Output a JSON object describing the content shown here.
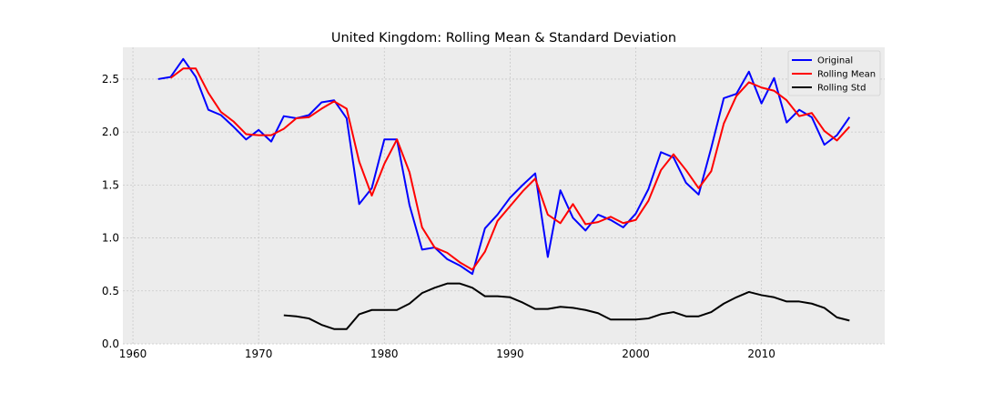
{
  "chart_data": {
    "type": "line",
    "title": "United Kingdom: Rolling Mean & Standard Deviation",
    "xlabel": "",
    "ylabel": "",
    "xlim": [
      1959.2,
      2019.8
    ],
    "ylim": [
      0.0,
      2.8
    ],
    "xticks": [
      1960,
      1970,
      1980,
      1990,
      2000,
      2010
    ],
    "yticks": [
      0.0,
      0.5,
      1.0,
      1.5,
      2.0,
      2.5
    ],
    "grid": true,
    "legend_position": "top-right",
    "colors": {
      "plot_background": "#ececec",
      "grid": "#c8c8c8"
    },
    "series": [
      {
        "name": "Original",
        "color": "#0000ff",
        "x": [
          1962,
          1963,
          1964,
          1965,
          1966,
          1967,
          1968,
          1969,
          1970,
          1971,
          1972,
          1973,
          1974,
          1975,
          1976,
          1977,
          1978,
          1979,
          1980,
          1981,
          1982,
          1983,
          1984,
          1985,
          1986,
          1987,
          1988,
          1989,
          1990,
          1991,
          1992,
          1993,
          1994,
          1995,
          1996,
          1997,
          1998,
          1999,
          2000,
          2001,
          2002,
          2003,
          2004,
          2005,
          2006,
          2007,
          2008,
          2009,
          2010,
          2011,
          2012,
          2013,
          2014,
          2015,
          2016,
          2017
        ],
        "values": [
          2.5,
          2.52,
          2.69,
          2.52,
          2.21,
          2.16,
          2.05,
          1.93,
          2.02,
          1.91,
          2.15,
          2.13,
          2.16,
          2.28,
          2.3,
          2.13,
          1.32,
          1.47,
          1.93,
          1.93,
          1.31,
          0.89,
          0.91,
          0.8,
          0.74,
          0.66,
          1.09,
          1.22,
          1.38,
          1.5,
          1.61,
          0.82,
          1.45,
          1.19,
          1.07,
          1.22,
          1.17,
          1.1,
          1.23,
          1.46,
          1.81,
          1.76,
          1.52,
          1.41,
          1.85,
          2.32,
          2.36,
          2.57,
          2.27,
          2.51,
          2.09,
          2.21,
          2.14,
          1.88,
          1.97,
          2.14
        ]
      },
      {
        "name": "Rolling Mean",
        "color": "#ff0000",
        "x": [
          1963,
          1964,
          1965,
          1966,
          1967,
          1968,
          1969,
          1970,
          1971,
          1972,
          1973,
          1974,
          1975,
          1976,
          1977,
          1978,
          1979,
          1980,
          1981,
          1982,
          1983,
          1984,
          1985,
          1986,
          1987,
          1988,
          1989,
          1990,
          1991,
          1992,
          1993,
          1994,
          1995,
          1996,
          1997,
          1998,
          1999,
          2000,
          2001,
          2002,
          2003,
          2004,
          2005,
          2006,
          2007,
          2008,
          2009,
          2010,
          2011,
          2012,
          2013,
          2014,
          2015,
          2016,
          2017
        ],
        "values": [
          2.51,
          2.6,
          2.6,
          2.37,
          2.19,
          2.1,
          1.98,
          1.97,
          1.97,
          2.03,
          2.13,
          2.14,
          2.22,
          2.29,
          2.22,
          1.72,
          1.4,
          1.7,
          1.93,
          1.62,
          1.1,
          0.91,
          0.86,
          0.77,
          0.7,
          0.87,
          1.16,
          1.3,
          1.44,
          1.56,
          1.22,
          1.14,
          1.32,
          1.13,
          1.15,
          1.2,
          1.14,
          1.17,
          1.35,
          1.64,
          1.79,
          1.64,
          1.47,
          1.63,
          2.08,
          2.34,
          2.47,
          2.42,
          2.39,
          2.3,
          2.15,
          2.18,
          2.01,
          1.92,
          2.05
        ]
      },
      {
        "name": "Rolling Std",
        "color": "#000000",
        "x": [
          1972,
          1973,
          1974,
          1975,
          1976,
          1977,
          1978,
          1979,
          1980,
          1981,
          1982,
          1983,
          1984,
          1985,
          1986,
          1987,
          1988,
          1989,
          1990,
          1991,
          1992,
          1993,
          1994,
          1995,
          1996,
          1997,
          1998,
          1999,
          2000,
          2001,
          2002,
          2003,
          2004,
          2005,
          2006,
          2007,
          2008,
          2009,
          2010,
          2011,
          2012,
          2013,
          2014,
          2015,
          2016,
          2017
        ],
        "values": [
          0.27,
          0.26,
          0.24,
          0.18,
          0.14,
          0.14,
          0.28,
          0.32,
          0.32,
          0.32,
          0.38,
          0.48,
          0.53,
          0.57,
          0.57,
          0.53,
          0.45,
          0.45,
          0.44,
          0.39,
          0.33,
          0.33,
          0.35,
          0.34,
          0.32,
          0.29,
          0.23,
          0.23,
          0.23,
          0.24,
          0.28,
          0.3,
          0.26,
          0.26,
          0.3,
          0.38,
          0.44,
          0.49,
          0.46,
          0.44,
          0.4,
          0.4,
          0.38,
          0.34,
          0.25,
          0.22
        ]
      }
    ]
  }
}
